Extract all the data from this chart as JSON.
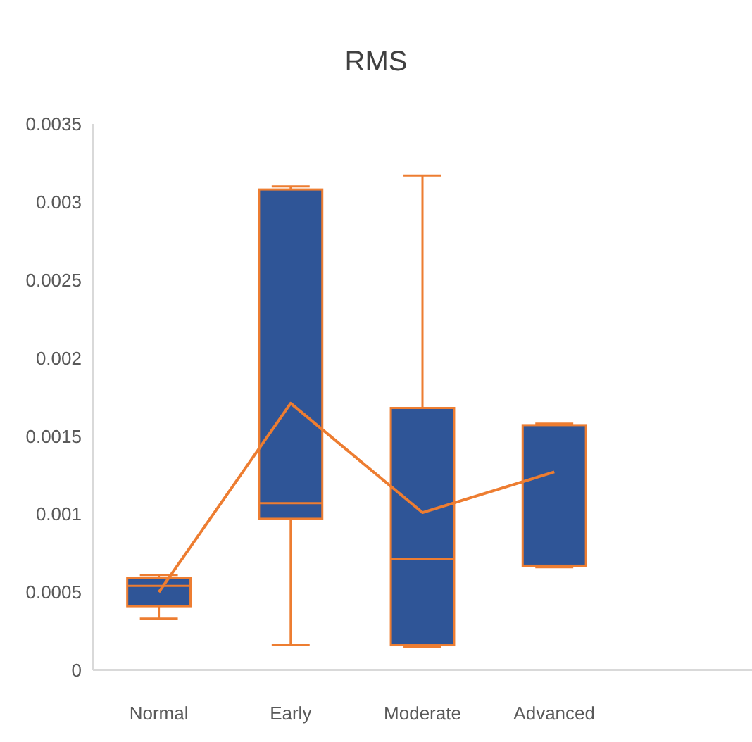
{
  "chart_data": {
    "type": "box",
    "title": "RMS",
    "categories": [
      "Normal",
      "Early",
      "Moderate",
      "Advanced",
      null
    ],
    "color": "#2f5597",
    "boxes": [
      {
        "low": 0.00033,
        "q1": 0.00041,
        "median": 0.00054,
        "q3": 0.00059,
        "high": 0.00061
      },
      {
        "low": 0.00016,
        "q1": 0.00097,
        "median": 0.00107,
        "q3": 0.00308,
        "high": 0.0031
      },
      {
        "low": 0.00015,
        "q1": 0.00016,
        "median": 0.00071,
        "q3": 0.00168,
        "high": 0.00317
      },
      {
        "low": 0.00066,
        "q1": 0.00067,
        "median": 0.00067,
        "q3": 0.00157,
        "high": 0.00158
      },
      null
    ],
    "series": [
      {
        "type": "line",
        "color": "#ed7d31",
        "values": [
          0.0005,
          0.00171,
          0.00101,
          0.00127,
          null
        ]
      }
    ],
    "ylim": [
      0,
      0.0035
    ],
    "yticks": [
      0,
      0.0005,
      0.001,
      0.0015,
      0.002,
      0.0025,
      0.003,
      0.0035
    ],
    "grid": false
  }
}
